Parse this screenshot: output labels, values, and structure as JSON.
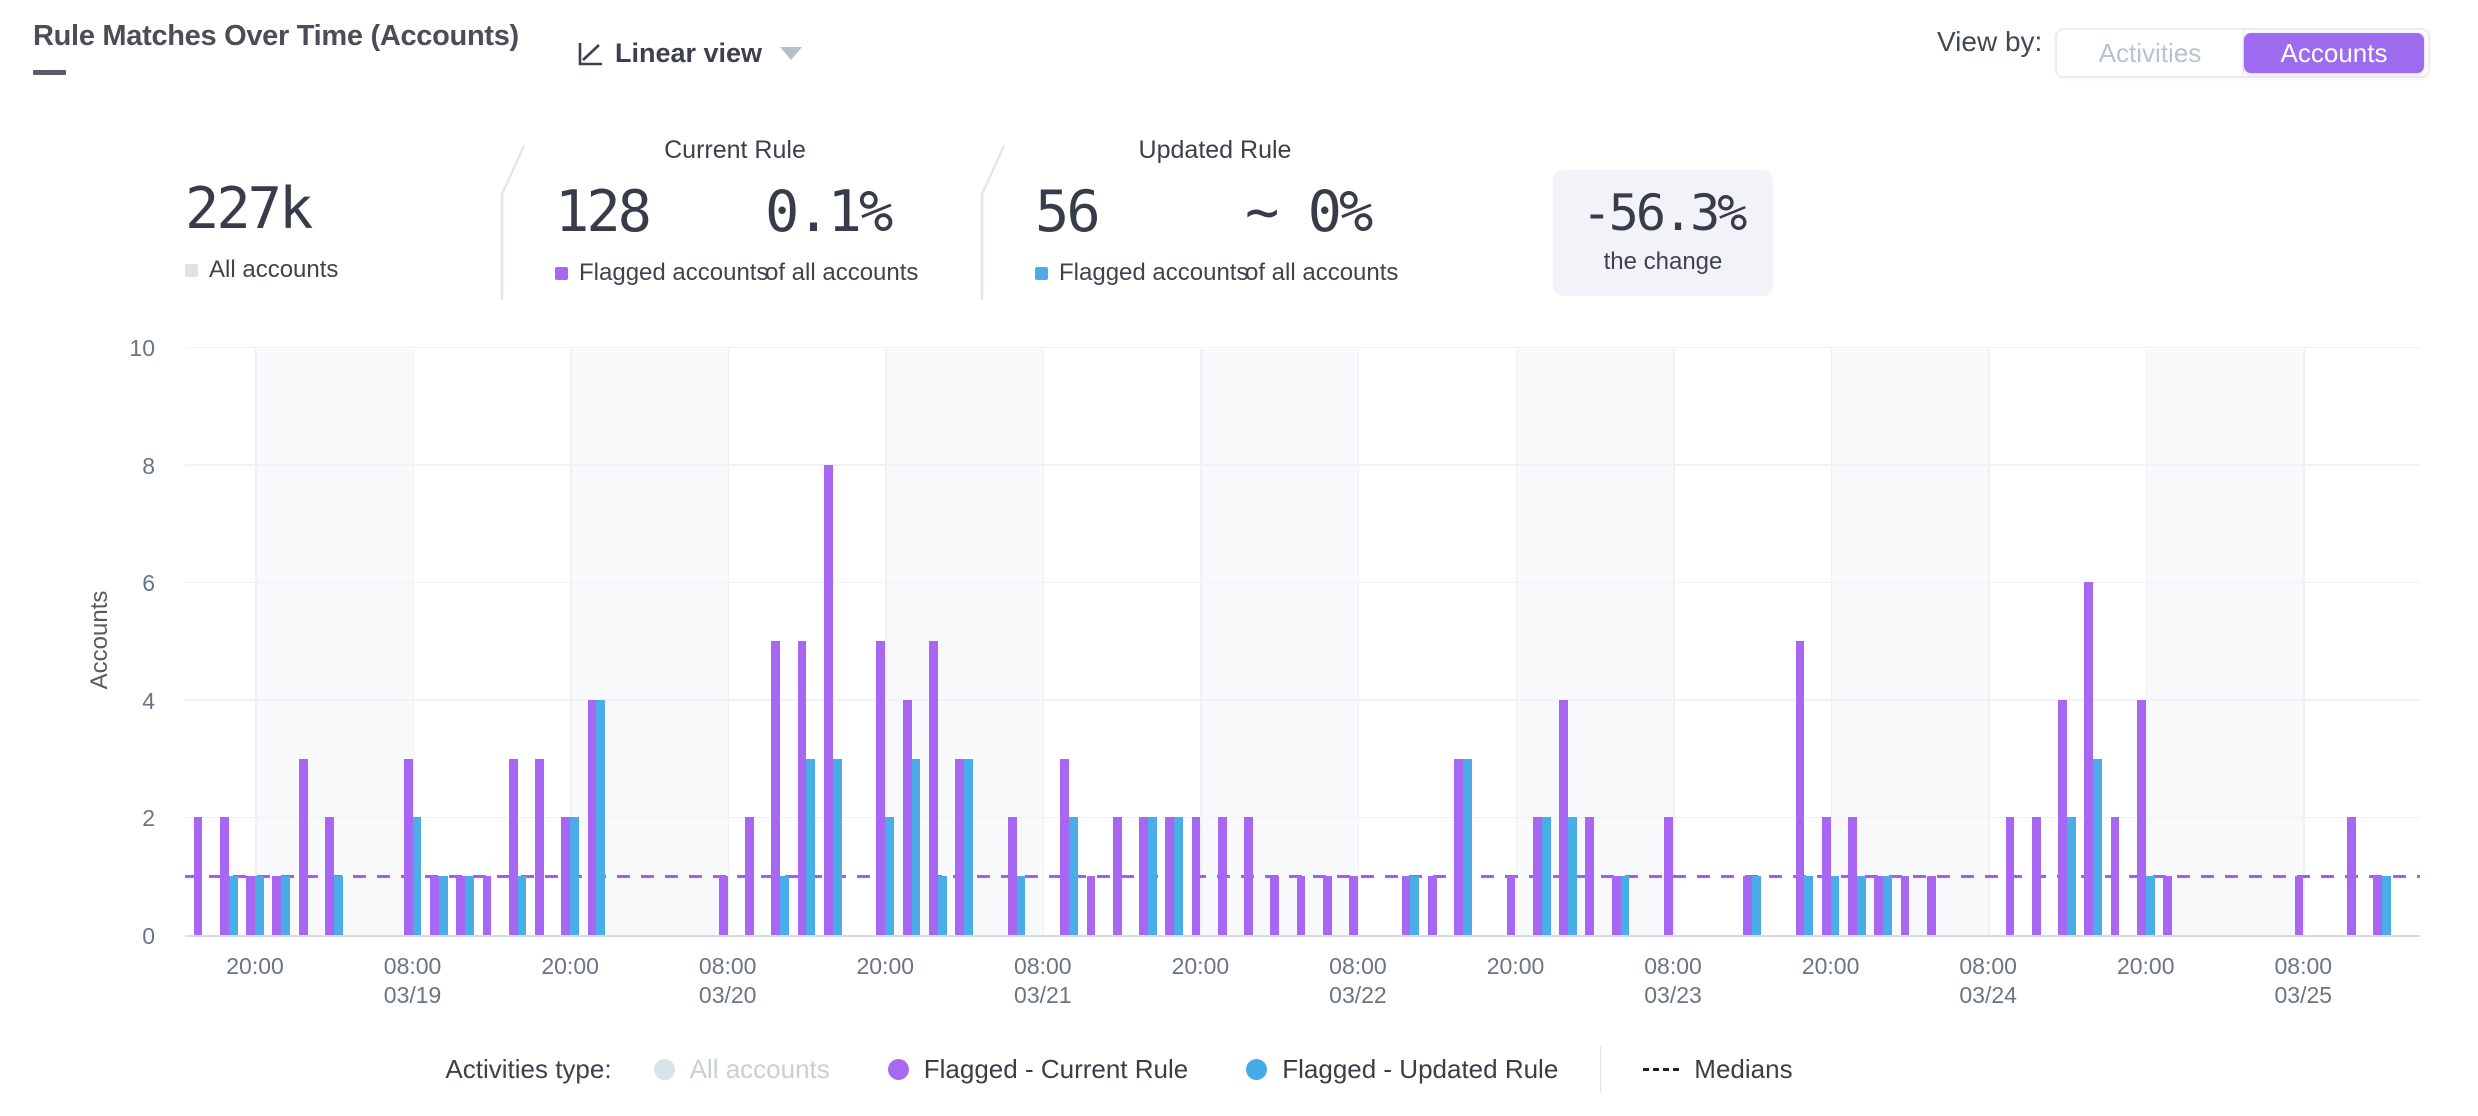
{
  "header": {
    "title": "Rule Matches Over Time (Accounts)",
    "view_mode_label": "Linear view",
    "view_by_label": "View by:",
    "view_by_options": [
      "Activities",
      "Accounts"
    ],
    "view_by_selected": "Accounts"
  },
  "stats": {
    "all": {
      "value": "227k",
      "label": "All accounts",
      "swatch": "#dbe3ea"
    },
    "current_rule": {
      "title": "Current Rule",
      "flagged": {
        "value": "128",
        "label": "Flagged accounts",
        "swatch": "#a869f2"
      },
      "pct": {
        "value": "0.1%",
        "label": "of all accounts"
      }
    },
    "updated_rule": {
      "title": "Updated Rule",
      "flagged": {
        "value": "56",
        "label": "Flagged accounts",
        "swatch": "#4aace8"
      },
      "pct": {
        "value": "~ 0%",
        "label": "of all accounts"
      }
    },
    "change": {
      "value": "-56.3%",
      "label": "the change"
    }
  },
  "chart_data": {
    "type": "bar",
    "title": "Rule Matches Over Time (Accounts)",
    "ylabel": "Accounts",
    "ylim": [
      0,
      10
    ],
    "yticks": [
      0,
      2,
      4,
      6,
      8,
      10
    ],
    "grid": true,
    "bar_interval_hours": 2,
    "x_ticks": [
      {
        "time": "20:00",
        "date": ""
      },
      {
        "time": "08:00",
        "date": "03/19"
      },
      {
        "time": "20:00",
        "date": ""
      },
      {
        "time": "08:00",
        "date": "03/20"
      },
      {
        "time": "20:00",
        "date": ""
      },
      {
        "time": "08:00",
        "date": "03/21"
      },
      {
        "time": "20:00",
        "date": ""
      },
      {
        "time": "08:00",
        "date": "03/22"
      },
      {
        "time": "20:00",
        "date": ""
      },
      {
        "time": "08:00",
        "date": "03/23"
      },
      {
        "time": "20:00",
        "date": ""
      },
      {
        "time": "08:00",
        "date": "03/24"
      },
      {
        "time": "20:00",
        "date": ""
      },
      {
        "time": "08:00",
        "date": "03/25"
      }
    ],
    "night_band_color": "#f8f9fb",
    "series": [
      {
        "name": "Flagged - Current Rule",
        "color": "#a867f3",
        "values": [
          2,
          2,
          1,
          1,
          3,
          2,
          0,
          0,
          3,
          1,
          1,
          1,
          3,
          3,
          2,
          4,
          0,
          0,
          0,
          0,
          1,
          2,
          5,
          5,
          8,
          0,
          5,
          4,
          5,
          3,
          0,
          2,
          0,
          3,
          1,
          2,
          2,
          2,
          2,
          2,
          2,
          1,
          1,
          1,
          1,
          0,
          1,
          1,
          3,
          0,
          1,
          2,
          4,
          2,
          1,
          0,
          2,
          0,
          0,
          1,
          0,
          5,
          2,
          2,
          1,
          1,
          1,
          0,
          0,
          2,
          2,
          4,
          6,
          2,
          4,
          1,
          0,
          0,
          0,
          0,
          1,
          0,
          2,
          1
        ]
      },
      {
        "name": "Flagged - Updated Rule",
        "color": "#4bade8",
        "values": [
          0,
          1,
          1,
          1,
          0,
          1,
          0,
          0,
          2,
          1,
          1,
          0,
          1,
          0,
          2,
          4,
          0,
          0,
          0,
          0,
          0,
          0,
          1,
          3,
          3,
          0,
          2,
          3,
          1,
          3,
          0,
          1,
          0,
          2,
          0,
          0,
          2,
          2,
          0,
          0,
          0,
          0,
          0,
          0,
          0,
          0,
          1,
          0,
          3,
          0,
          0,
          2,
          2,
          0,
          1,
          0,
          0,
          0,
          0,
          1,
          0,
          1,
          1,
          1,
          1,
          0,
          0,
          0,
          0,
          0,
          0,
          2,
          3,
          0,
          1,
          0,
          0,
          0,
          0,
          0,
          0,
          0,
          0,
          1
        ]
      }
    ],
    "medians": {
      "value": 1,
      "color": "#a55cf7",
      "style": "dashed"
    },
    "legend_position": "bottom"
  },
  "legend": {
    "prefix": "Activities type:",
    "items": [
      {
        "label": "All accounts",
        "color": "#d9e3ea",
        "muted": true
      },
      {
        "label": "Flagged - Current Rule",
        "color": "#a869f2",
        "muted": false
      },
      {
        "label": "Flagged - Updated Rule",
        "color": "#45abe7",
        "muted": false
      }
    ],
    "medians_label": "Medians"
  }
}
